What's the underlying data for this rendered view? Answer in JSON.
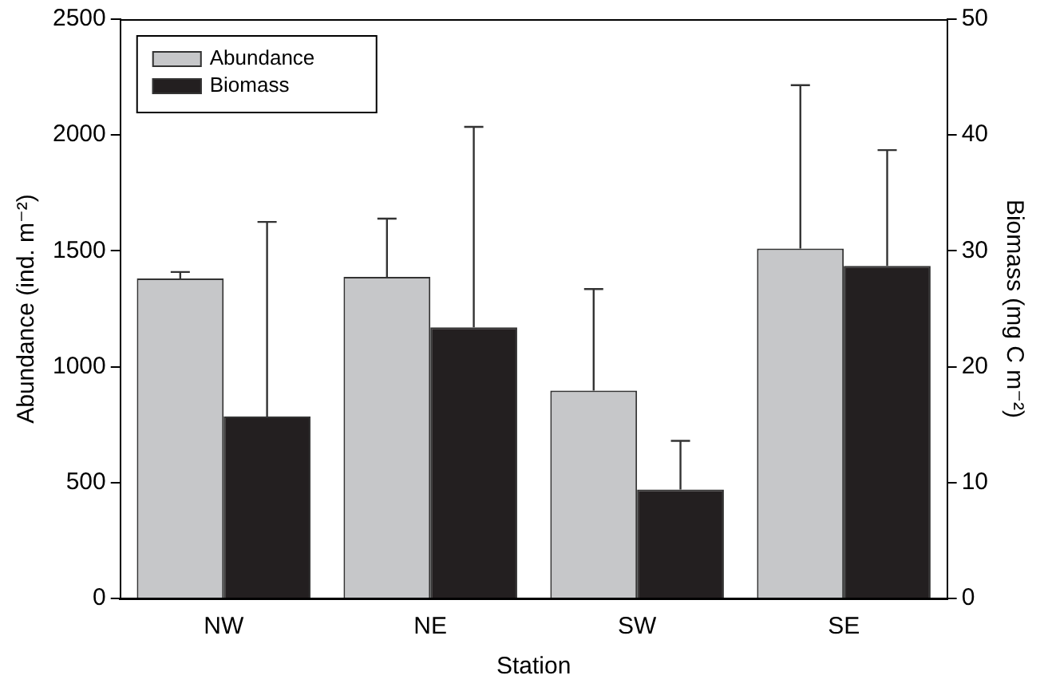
{
  "chart_data": {
    "type": "bar",
    "xlabel": "Station",
    "ylabel": "Abundance (ind. m⁻²)",
    "y2label": "Biomass (mg C m⁻²)",
    "categories": [
      "NW",
      "NE",
      "SW",
      "SE"
    ],
    "series": [
      {
        "name": "Abundance",
        "color": "#c6c7c9",
        "values": [
          1381,
          1388,
          897,
          1510
        ],
        "errors": [
          [
            1381,
            1409
          ],
          [
            1388,
            1639
          ],
          [
            897,
            1335
          ],
          [
            1510,
            2215
          ]
        ]
      },
      {
        "name": "Biomass",
        "color": "#231f20",
        "axis": "y2",
        "values": [
          15.7,
          23.4,
          9.4,
          28.7
        ],
        "errors": [
          [
            15.7,
            32.5
          ],
          [
            23.4,
            40.7
          ],
          [
            9.4,
            13.6
          ],
          [
            28.7,
            38.7
          ]
        ]
      }
    ],
    "ylim": [
      0,
      2500
    ],
    "yticks": [
      0,
      500,
      1000,
      1500,
      2000,
      2500
    ],
    "y2lim": [
      0,
      50
    ],
    "y2ticks": [
      0,
      10,
      20,
      30,
      40,
      50
    ],
    "grid": false,
    "legend": "top left"
  }
}
